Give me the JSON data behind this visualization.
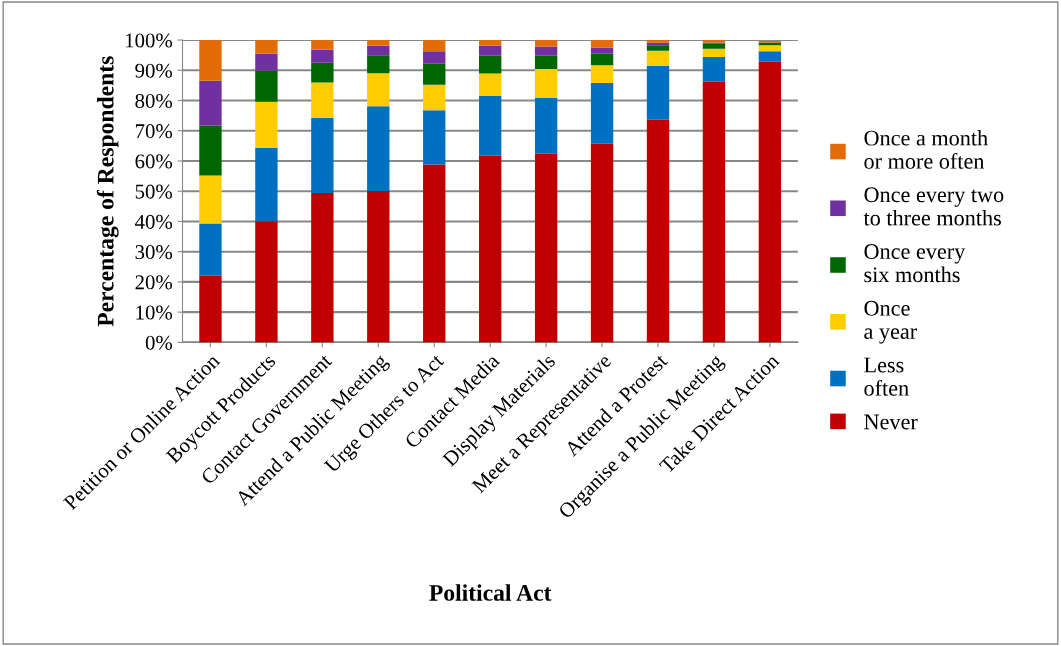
{
  "chart_data": {
    "type": "bar",
    "stacked": true,
    "xlabel": "Political Act",
    "ylabel": "Percentage of Respondents",
    "categories": [
      "Petition or Online Action",
      "Boycott Products",
      "Contact Government",
      "Attend a Public Meeting",
      "Urge Others to Act",
      "Contact Media",
      "Display Materials",
      "Meet a Representative",
      "Attend a Protest",
      "Organise a Public Meeting",
      "Take Direct Action"
    ],
    "series": [
      {
        "name": "Never",
        "color": "#c00000",
        "values": [
          22,
          40.1,
          49.4,
          50.1,
          58.8,
          61.7,
          62.4,
          65.7,
          73.6,
          86.2,
          92.8
        ]
      },
      {
        "name": "Less\noften",
        "color": "#0070c0",
        "values": [
          17.3,
          24.3,
          24.9,
          28,
          18,
          19.8,
          18.4,
          20.1,
          17.9,
          8.2,
          3.5
        ]
      },
      {
        "name": "Once\na year",
        "color": "#ffcc00",
        "values": [
          15.9,
          15.2,
          11.7,
          10.9,
          8.4,
          7.4,
          9.6,
          5.9,
          5,
          2.7,
          2
        ]
      },
      {
        "name": "Once every\nsix months",
        "color": "#006600",
        "values": [
          16.5,
          10.3,
          6.5,
          6,
          7,
          5.9,
          4.4,
          3.8,
          1.8,
          1.7,
          0.9
        ]
      },
      {
        "name": "Once every two\nto three months",
        "color": "#7030a0",
        "values": [
          14.8,
          5.6,
          4.3,
          3.1,
          4.1,
          3.3,
          3.1,
          2,
          0.8,
          0.4,
          null
        ]
      },
      {
        "name": "Once a month\nor more often",
        "color": "#e36c09",
        "values": [
          13.5,
          4.5,
          3.2,
          1.9,
          3.7,
          1.9,
          2.1,
          2.5,
          0.9,
          0.8,
          0.5
        ]
      }
    ],
    "ylim": [
      0,
      100
    ],
    "yticks": [
      {
        "value": 0,
        "label": "0%"
      },
      {
        "value": 10,
        "label": "10%"
      },
      {
        "value": 20,
        "label": "20%"
      },
      {
        "value": 30,
        "label": "30%"
      },
      {
        "value": 40,
        "label": "40%"
      },
      {
        "value": 50,
        "label": "50%"
      },
      {
        "value": 60,
        "label": "60%"
      },
      {
        "value": 70,
        "label": "70%"
      },
      {
        "value": 80,
        "label": "80%"
      },
      {
        "value": 90,
        "label": "90%"
      },
      {
        "value": 100,
        "label": "100%"
      }
    ],
    "grid": "y",
    "legend": "right"
  }
}
